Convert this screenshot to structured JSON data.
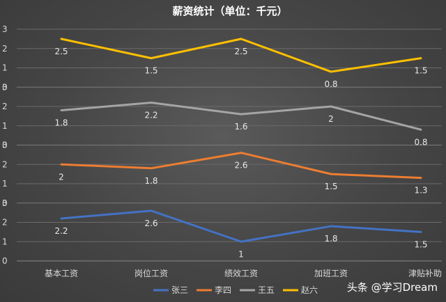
{
  "chart_data": {
    "type": "line",
    "title": "薪资统计（单位：千元）",
    "categories": [
      "基本工资",
      "岗位工资",
      "绩效工资",
      "加班工资",
      "津贴补助"
    ],
    "panel_tick_labels": [
      "0",
      "1",
      "2",
      "3"
    ],
    "grid": true,
    "legend_position": "bottom",
    "series": [
      {
        "name": "张三",
        "color": "#4472C4",
        "values": [
          2.2,
          2.6,
          1,
          1.8,
          1.5
        ],
        "labels": [
          "2.2",
          "2.6",
          "1",
          "1.8",
          "1.5"
        ],
        "label_on": [
          true,
          true,
          true,
          true,
          true
        ]
      },
      {
        "name": "李四",
        "color": "#ED7D31",
        "values": [
          2,
          1.8,
          2.6,
          1.5,
          1.3
        ],
        "labels": [
          "2",
          "1.8",
          "2.6",
          "1.5",
          "1.3"
        ],
        "label_on": [
          true,
          true,
          true,
          true,
          true
        ]
      },
      {
        "name": "王五",
        "color": "#A5A5A5",
        "values": [
          1.8,
          2.2,
          1.6,
          2,
          0.8
        ],
        "labels": [
          "1.8",
          "2.2",
          "1.6",
          "2",
          "0.8"
        ],
        "label_on": [
          true,
          true,
          true,
          true,
          true
        ]
      },
      {
        "name": "赵六",
        "color": "#FFC000",
        "values": [
          2.5,
          1.5,
          2.5,
          0.8,
          1.5
        ],
        "labels": [
          "2.5",
          "1.5",
          "2.5",
          "0.8",
          "1.5"
        ],
        "label_on": [
          true,
          true,
          true,
          true,
          true
        ]
      }
    ]
  },
  "watermark": "头条 @学习Dream"
}
